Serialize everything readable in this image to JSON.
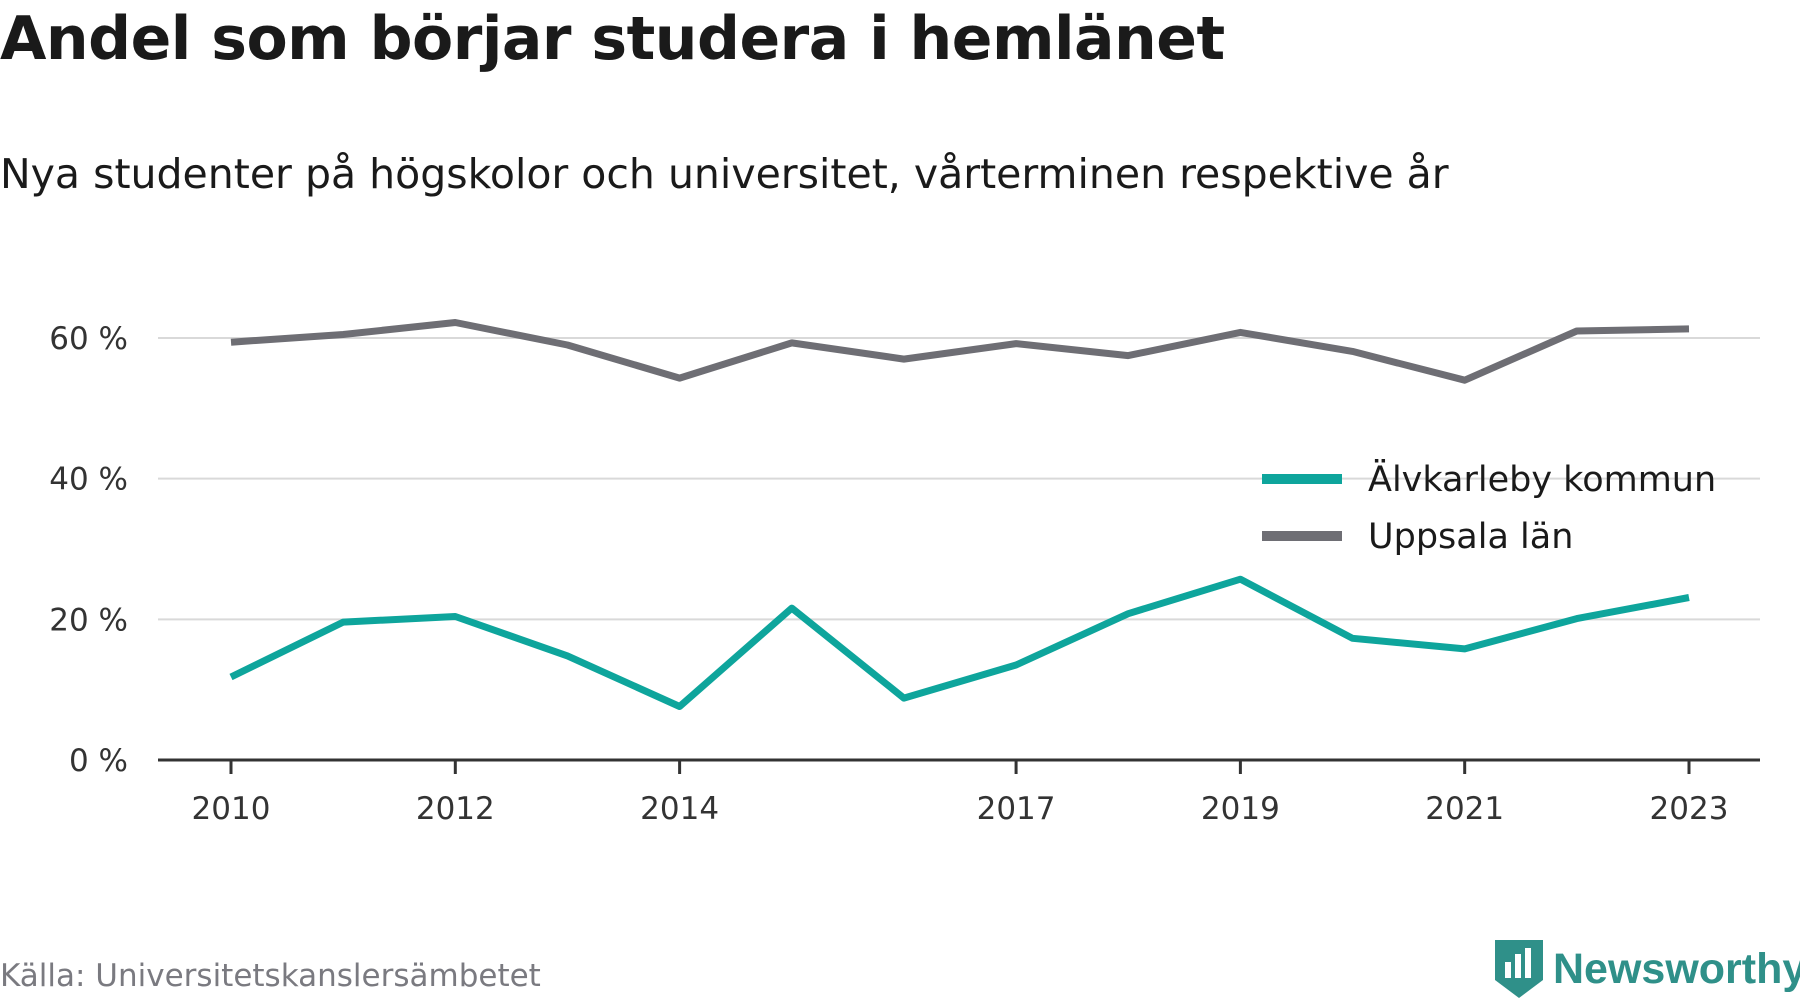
{
  "header": {
    "title": "Andel som börjar studera i hemlänet",
    "subtitle": "Nya studenter på högskolor och universitet, vårterminen respektive år"
  },
  "footer": {
    "source": "Källa: Universitetskanslersämbetet",
    "brand": "Newsworthy"
  },
  "colors": {
    "series_alvkarleby": "#0ea59c",
    "series_uppsala": "#6e6e74",
    "grid": "#d9d9d9",
    "axis": "#333333",
    "brand": "#2f9089"
  },
  "chart_data": {
    "type": "line",
    "x": [
      2010,
      2011,
      2012,
      2013,
      2014,
      2015,
      2016,
      2017,
      2018,
      2019,
      2020,
      2021,
      2022,
      2023
    ],
    "x_tick_labels": [
      "2010",
      "2012",
      "2014",
      "2017",
      "2019",
      "2021",
      "2023"
    ],
    "y_tick_labels": [
      "0 %",
      "20 %",
      "40 %",
      "60 %"
    ],
    "y_ticks": [
      0,
      20,
      40,
      60
    ],
    "ylim": [
      0,
      70
    ],
    "grid": true,
    "legend_position": "right",
    "series": [
      {
        "name": "Älvkarleby kommun",
        "color": "#0ea59c",
        "values": [
          11.8,
          19.6,
          20.4,
          14.8,
          7.6,
          21.6,
          8.8,
          13.5,
          20.8,
          25.7,
          17.3,
          15.8,
          20.1,
          23.1
        ]
      },
      {
        "name": "Uppsala län",
        "color": "#6e6e74",
        "values": [
          59.4,
          60.5,
          62.2,
          59.0,
          54.3,
          59.3,
          57.0,
          59.2,
          57.5,
          60.8,
          58.1,
          54.0,
          61.0,
          61.3
        ]
      }
    ]
  }
}
